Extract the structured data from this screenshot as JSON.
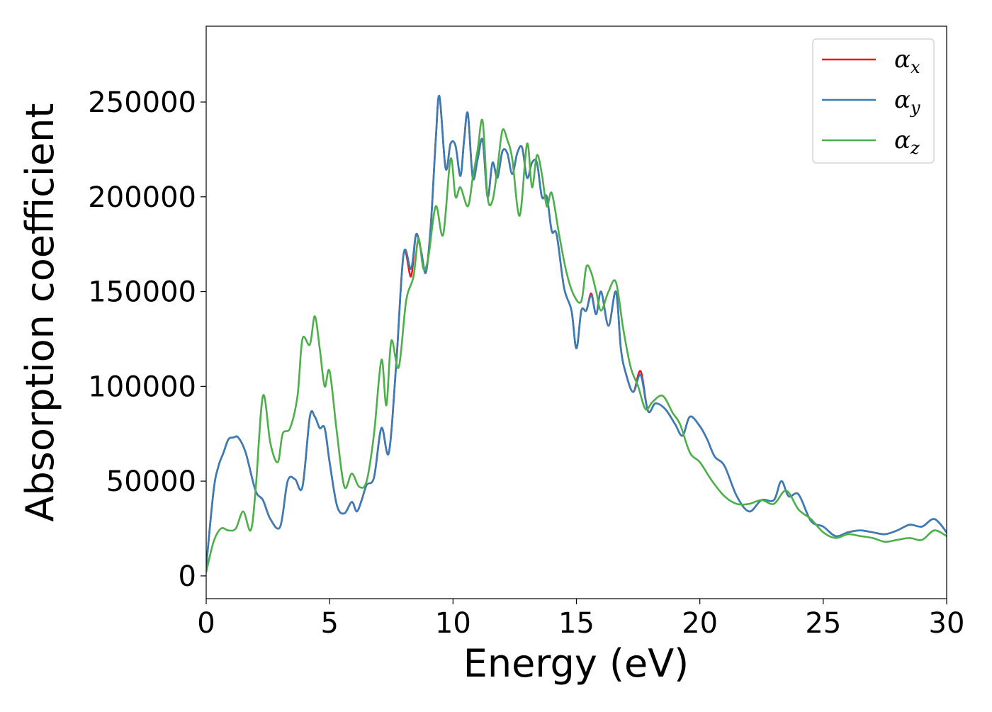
{
  "chart_data": {
    "type": "line",
    "xlabel": "Energy (eV)",
    "ylabel": "Absorption coefficient",
    "xlim": [
      0,
      30
    ],
    "ylim": [
      -12000,
      290000
    ],
    "xticks": [
      0,
      5,
      10,
      15,
      20,
      25,
      30
    ],
    "xtick_labels": [
      "0",
      "5",
      "10",
      "15",
      "20",
      "25",
      "30"
    ],
    "yticks": [
      0,
      50000,
      100000,
      150000,
      200000,
      250000
    ],
    "ytick_labels": [
      "0",
      "50000",
      "100000",
      "150000",
      "200000",
      "250000"
    ],
    "grid": false,
    "legend_position": "top-right",
    "series": [
      {
        "name": "αx",
        "symbol": "α",
        "subscript": "x",
        "color": "#e41a1c",
        "x": [
          0,
          0.3,
          0.5,
          0.7,
          0.9,
          1.1,
          1.3,
          1.6,
          2.0,
          2.3,
          2.6,
          3.0,
          3.3,
          3.6,
          3.9,
          4.2,
          4.4,
          4.6,
          4.8,
          5.0,
          5.3,
          5.6,
          5.9,
          6.1,
          6.3,
          6.5,
          6.8,
          7.1,
          7.4,
          7.7,
          8.0,
          8.3,
          8.5,
          8.7,
          8.9,
          9.1,
          9.3,
          9.45,
          9.7,
          9.9,
          10.1,
          10.3,
          10.45,
          10.6,
          10.8,
          11.0,
          11.2,
          11.4,
          11.6,
          11.8,
          12.0,
          12.2,
          12.4,
          12.6,
          12.8,
          13.0,
          13.2,
          13.4,
          13.6,
          13.8,
          14.0,
          14.2,
          14.5,
          14.8,
          15.0,
          15.2,
          15.4,
          15.6,
          15.8,
          16.0,
          16.3,
          16.6,
          16.8,
          17.0,
          17.3,
          17.6,
          17.9,
          18.2,
          18.6,
          19.0,
          19.3,
          19.6,
          20.0,
          20.3,
          20.6,
          21.0,
          21.5,
          22.0,
          22.5,
          23.0,
          23.3,
          23.6,
          24.0,
          24.5,
          25.0,
          25.5,
          26.0,
          26.5,
          27.0,
          27.5,
          28.0,
          28.5,
          29.0,
          29.5,
          30.0
        ],
        "y": [
          5000,
          45000,
          58000,
          65000,
          72000,
          73000,
          73000,
          65000,
          45000,
          40000,
          30000,
          26000,
          50000,
          51000,
          47000,
          84000,
          84000,
          78000,
          78000,
          60000,
          37000,
          33000,
          39000,
          34000,
          40000,
          48000,
          52000,
          78000,
          65000,
          112000,
          170000,
          158000,
          180000,
          172000,
          160000,
          185000,
          230000,
          253000,
          215000,
          228000,
          227000,
          211000,
          230000,
          244000,
          210000,
          220000,
          230000,
          200000,
          218000,
          210000,
          224000,
          223000,
          212000,
          223000,
          226000,
          210000,
          218000,
          218000,
          200000,
          200000,
          182000,
          180000,
          152000,
          140000,
          120000,
          140000,
          140000,
          149000,
          138000,
          150000,
          132000,
          150000,
          120000,
          107000,
          97000,
          108000,
          87000,
          91000,
          88000,
          80000,
          74000,
          84000,
          79000,
          72000,
          63000,
          58000,
          42000,
          34000,
          40000,
          40000,
          50000,
          42000,
          43000,
          29000,
          26000,
          21000,
          23000,
          24000,
          23000,
          22000,
          24000,
          27000,
          26000,
          30000,
          23000
        ]
      },
      {
        "name": "αy",
        "symbol": "α",
        "subscript": "y",
        "color": "#377eb8",
        "x": [
          0,
          0.3,
          0.5,
          0.7,
          0.9,
          1.1,
          1.3,
          1.6,
          2.0,
          2.3,
          2.6,
          3.0,
          3.3,
          3.6,
          3.9,
          4.2,
          4.4,
          4.6,
          4.8,
          5.0,
          5.3,
          5.6,
          5.9,
          6.1,
          6.3,
          6.5,
          6.8,
          7.1,
          7.4,
          7.7,
          8.0,
          8.3,
          8.5,
          8.7,
          8.9,
          9.1,
          9.3,
          9.45,
          9.7,
          9.9,
          10.1,
          10.3,
          10.45,
          10.6,
          10.8,
          11.0,
          11.2,
          11.4,
          11.6,
          11.8,
          12.0,
          12.2,
          12.4,
          12.6,
          12.8,
          13.0,
          13.2,
          13.4,
          13.6,
          13.8,
          14.0,
          14.2,
          14.5,
          14.8,
          15.0,
          15.2,
          15.4,
          15.6,
          15.8,
          16.0,
          16.3,
          16.6,
          16.8,
          17.0,
          17.3,
          17.6,
          17.9,
          18.2,
          18.6,
          19.0,
          19.3,
          19.6,
          20.0,
          20.3,
          20.6,
          21.0,
          21.5,
          22.0,
          22.5,
          23.0,
          23.3,
          23.6,
          24.0,
          24.5,
          25.0,
          25.5,
          26.0,
          26.5,
          27.0,
          27.5,
          28.0,
          28.5,
          29.0,
          29.5,
          30.0
        ],
        "y": [
          5000,
          45000,
          58000,
          65000,
          72000,
          73000,
          73000,
          65000,
          45000,
          40000,
          30000,
          26000,
          50000,
          51000,
          47000,
          84000,
          84000,
          78000,
          78000,
          60000,
          37000,
          33000,
          39000,
          34000,
          40000,
          48000,
          52000,
          78000,
          65000,
          112000,
          170000,
          162000,
          180000,
          172000,
          160000,
          185000,
          230000,
          253000,
          215000,
          228000,
          227000,
          211000,
          230000,
          244000,
          210000,
          220000,
          230000,
          200000,
          218000,
          210000,
          224000,
          223000,
          212000,
          223000,
          226000,
          210000,
          218000,
          218000,
          200000,
          200000,
          182000,
          180000,
          152000,
          140000,
          120000,
          140000,
          140000,
          148000,
          138000,
          150000,
          132000,
          150000,
          120000,
          107000,
          97000,
          106000,
          87000,
          91000,
          88000,
          80000,
          74000,
          84000,
          79000,
          72000,
          63000,
          58000,
          42000,
          34000,
          40000,
          40000,
          50000,
          42000,
          43000,
          29000,
          26000,
          21000,
          23000,
          24000,
          23000,
          22000,
          24000,
          27000,
          26000,
          30000,
          23000
        ]
      },
      {
        "name": "αz",
        "symbol": "α",
        "subscript": "z",
        "color": "#4daf4a",
        "x": [
          0,
          0.3,
          0.6,
          0.9,
          1.2,
          1.5,
          1.8,
          2.0,
          2.3,
          2.6,
          2.9,
          3.1,
          3.4,
          3.7,
          3.9,
          4.2,
          4.4,
          4.6,
          4.8,
          5.0,
          5.3,
          5.6,
          5.9,
          6.2,
          6.5,
          6.8,
          7.1,
          7.3,
          7.5,
          7.8,
          8.1,
          8.4,
          8.6,
          8.8,
          9.0,
          9.3,
          9.6,
          9.9,
          10.1,
          10.3,
          10.6,
          10.8,
          11.0,
          11.2,
          11.4,
          11.6,
          11.8,
          12.0,
          12.2,
          12.4,
          12.7,
          13.0,
          13.2,
          13.4,
          13.6,
          13.8,
          14.0,
          14.3,
          14.6,
          14.9,
          15.2,
          15.4,
          15.6,
          15.8,
          16.0,
          16.3,
          16.6,
          16.9,
          17.2,
          17.5,
          17.8,
          18.1,
          18.5,
          18.9,
          19.2,
          19.6,
          20.0,
          20.5,
          21.0,
          21.5,
          22.0,
          22.5,
          23.0,
          23.5,
          24.0,
          24.5,
          25.0,
          25.5,
          26.0,
          26.5,
          27.0,
          27.5,
          28.0,
          28.5,
          29.0,
          29.5,
          30.0
        ],
        "y": [
          2000,
          18000,
          25000,
          24000,
          25000,
          34000,
          24000,
          45000,
          95000,
          70000,
          60000,
          75000,
          78000,
          95000,
          125000,
          122000,
          137000,
          120000,
          100000,
          108000,
          75000,
          47000,
          54000,
          47000,
          50000,
          75000,
          114000,
          90000,
          124000,
          110000,
          145000,
          158000,
          178000,
          162000,
          168000,
          195000,
          180000,
          220000,
          200000,
          205000,
          195000,
          210000,
          225000,
          240000,
          200000,
          198000,
          215000,
          235000,
          230000,
          220000,
          190000,
          228000,
          205000,
          222000,
          212000,
          195000,
          202000,
          180000,
          160000,
          148000,
          145000,
          163000,
          160000,
          150000,
          140000,
          150000,
          155000,
          130000,
          110000,
          100000,
          88000,
          92000,
          95000,
          86000,
          80000,
          65000,
          60000,
          50000,
          42000,
          38000,
          38000,
          40000,
          38000,
          45000,
          35000,
          30000,
          23000,
          20000,
          22000,
          21000,
          20000,
          18000,
          19000,
          20000,
          19000,
          24000,
          21000
        ]
      }
    ]
  }
}
